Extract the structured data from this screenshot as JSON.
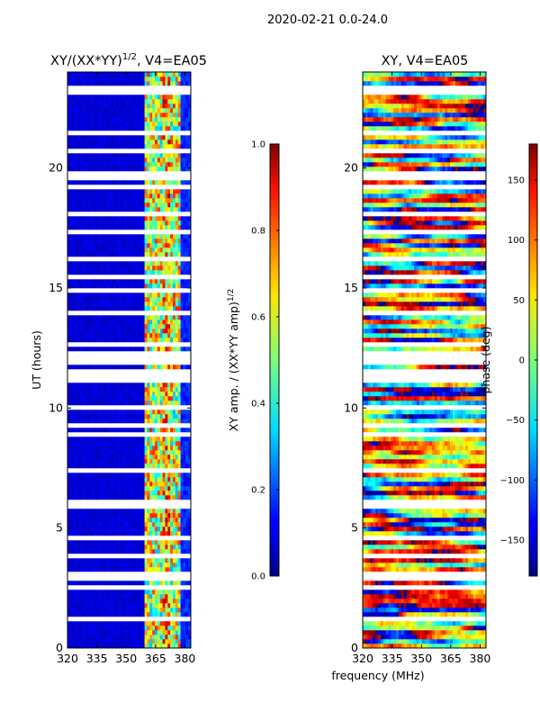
{
  "suptitle": "2020-02-21 0.0-24.0",
  "colors": {
    "axes": "#000000",
    "flag_row": "#ffffff",
    "background": "#ffffff"
  },
  "chart_data": [
    {
      "type": "heatmap",
      "title": "XY/(XX*YY)^1/2, V4=EA05",
      "title_main": "XY/(XX*YY)",
      "title_exp": "1/2",
      "title_tail": ", V4=EA05",
      "xlabel": "",
      "ylabel": "UT (hours)",
      "xlim": [
        320,
        383
      ],
      "ylim": [
        0,
        24
      ],
      "xticks": [
        320,
        335,
        350,
        365,
        380
      ],
      "yticks": [
        0,
        5,
        10,
        15,
        20
      ],
      "colormap": "jet",
      "colorbar": {
        "label": "XY amp. / (XX*YY amp)^1/2",
        "label_main": "XY amp. / (XX*YY amp)",
        "label_exp": "1/2",
        "range": [
          0.0,
          1.0
        ],
        "ticks": [
          "0.0",
          "0.2",
          "0.4",
          "0.6",
          "0.8",
          "1.0"
        ]
      },
      "description": "Low normalized amplitude (~0.0-0.1) across 320-360 MHz; elevated values (0.3-0.9) in 360-378 MHz band"
    },
    {
      "type": "heatmap",
      "title": "XY, V4=EA05",
      "xlabel": "frequency (MHz)",
      "ylabel": "",
      "xlim": [
        320,
        383
      ],
      "ylim": [
        0,
        24
      ],
      "xticks": [
        320,
        335,
        350,
        365,
        380
      ],
      "yticks": [
        0,
        5,
        10,
        15,
        20
      ],
      "colormap": "jet",
      "colorbar": {
        "label": "phase (deg)",
        "range": [
          -180,
          180
        ],
        "ticks": [
          "−150",
          "−100",
          "−50",
          "0",
          "50",
          "100",
          "150"
        ]
      },
      "description": "Phase values spanning full -180 to 180 deg range, noisy structure"
    }
  ]
}
